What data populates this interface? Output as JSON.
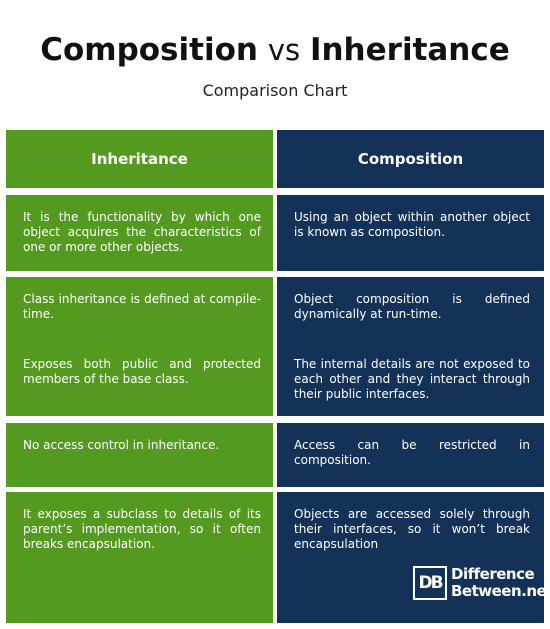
{
  "title": {
    "left": "Composition",
    "middle": "vs",
    "right": "Inheritance"
  },
  "subtitle": "Comparison Chart",
  "columns": {
    "left": {
      "header": "Inheritance",
      "rows": [
        "It is the functionality by which one object acquires the characteristics of one or more other objects.",
        "Class inheritance is defined at compile-time.",
        "Exposes both public and protected members of the base class.",
        "No access control in inheritance.",
        "It exposes a subclass to details of its parent’s implementation, so it often breaks encapsulation."
      ]
    },
    "right": {
      "header": "Composition",
      "rows": [
        "Using an object within another object is known as composition.",
        "Object composition is defined dynamically at run-time.",
        "The internal details are not exposed to each other and they interact through their public interfaces.",
        "Access can be restricted in composition.",
        "Objects are accessed solely through their interfaces, so it won’t break encapsulation"
      ]
    }
  },
  "logo": {
    "mark": "DB",
    "line1": "Difference",
    "line2": "Between.net"
  },
  "colors": {
    "inheritance": "#559a20",
    "composition": "#143257"
  }
}
